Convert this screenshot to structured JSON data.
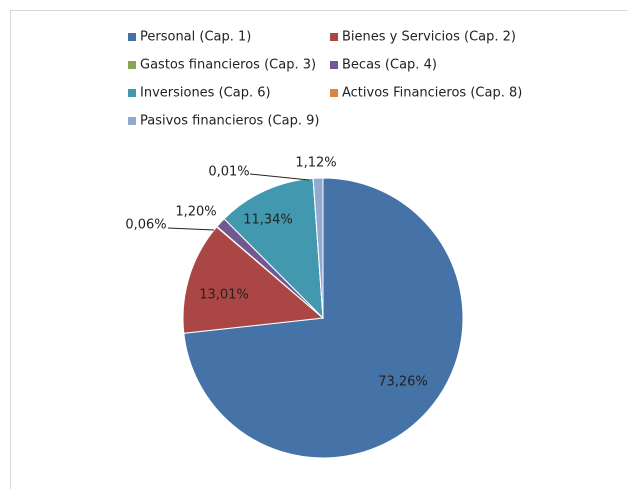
{
  "chart_data": {
    "type": "pie",
    "categories": [
      "Personal (Cap. 1)",
      "Bienes y Servicios (Cap. 2)",
      "Gastos financieros (Cap. 3)",
      "Becas (Cap. 4)",
      "Inversiones (Cap. 6)",
      "Activos Financieros (Cap. 8)",
      "Pasivos financieros (Cap. 9)"
    ],
    "values": [
      73.26,
      13.01,
      0.06,
      1.2,
      11.34,
      0.01,
      1.12
    ],
    "value_labels": [
      "73,26%",
      "13,01%",
      "0,06%",
      "1,20%",
      "11,34%",
      "0,01%",
      "1,12%"
    ],
    "colors": [
      "#4572a7",
      "#aa4643",
      "#89a54e",
      "#71588f",
      "#4198af",
      "#db843d",
      "#93a9cf"
    ],
    "legend": "top"
  }
}
